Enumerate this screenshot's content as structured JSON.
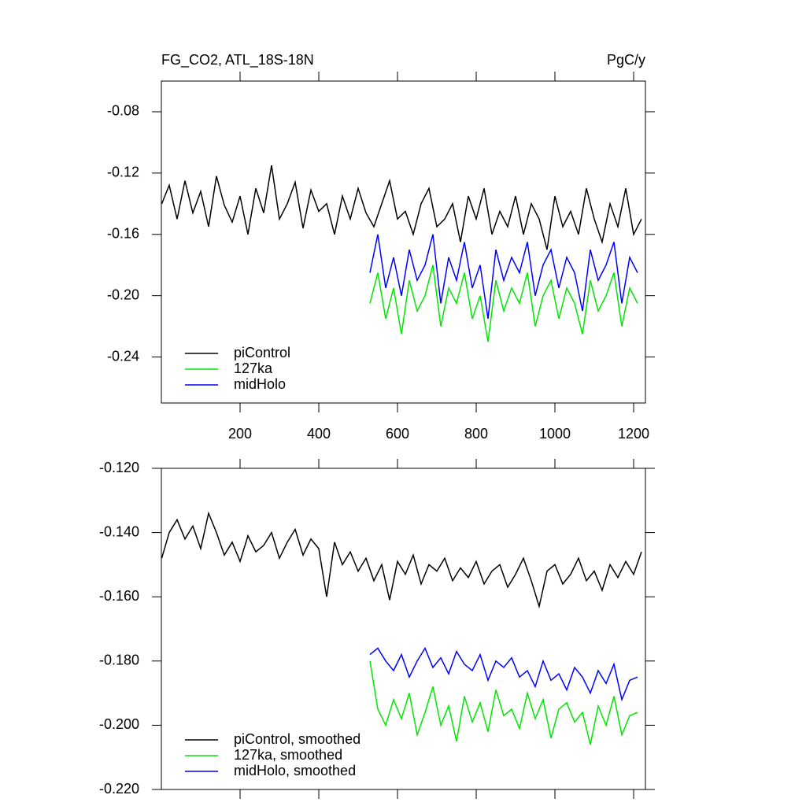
{
  "chart_data": [
    {
      "type": "line",
      "title": "FG_CO2, ATL_18S-18N",
      "units": "PgC/y",
      "xlim": [
        0,
        1230
      ],
      "xticks": [
        200,
        400,
        600,
        800,
        1000,
        1200
      ],
      "ylim": [
        -0.27,
        -0.06
      ],
      "yticks": [
        {
          "value": -0.08,
          "label": "-0.08"
        },
        {
          "value": -0.12,
          "label": "-0.12"
        },
        {
          "value": -0.16,
          "label": "-0.16"
        },
        {
          "value": -0.2,
          "label": "-0.20"
        },
        {
          "value": -0.24,
          "label": "-0.24"
        }
      ],
      "legend": "lower left",
      "series": [
        {
          "name": "piControl",
          "color": "#000000",
          "x": [
            1,
            20,
            40,
            60,
            80,
            100,
            120,
            140,
            160,
            180,
            200,
            220,
            240,
            260,
            280,
            300,
            320,
            340,
            360,
            380,
            400,
            420,
            440,
            460,
            480,
            500,
            520,
            540,
            560,
            580,
            600,
            620,
            640,
            660,
            680,
            700,
            720,
            740,
            760,
            780,
            800,
            820,
            840,
            860,
            880,
            900,
            920,
            940,
            960,
            980,
            1000,
            1020,
            1040,
            1060,
            1080,
            1100,
            1120,
            1140,
            1160,
            1180,
            1200,
            1220
          ],
          "values": [
            -0.14,
            -0.128,
            -0.15,
            -0.125,
            -0.146,
            -0.132,
            -0.155,
            -0.122,
            -0.141,
            -0.152,
            -0.135,
            -0.16,
            -0.13,
            -0.146,
            -0.115,
            -0.15,
            -0.14,
            -0.126,
            -0.156,
            -0.131,
            -0.145,
            -0.14,
            -0.16,
            -0.135,
            -0.15,
            -0.13,
            -0.146,
            -0.155,
            -0.14,
            -0.125,
            -0.15,
            -0.145,
            -0.16,
            -0.14,
            -0.13,
            -0.155,
            -0.15,
            -0.14,
            -0.165,
            -0.135,
            -0.15,
            -0.13,
            -0.16,
            -0.145,
            -0.155,
            -0.135,
            -0.16,
            -0.14,
            -0.15,
            -0.17,
            -0.135,
            -0.155,
            -0.145,
            -0.16,
            -0.13,
            -0.15,
            -0.165,
            -0.14,
            -0.155,
            -0.13,
            -0.16,
            -0.15
          ]
        },
        {
          "name": "127ka",
          "color": "#00e600",
          "x": [
            530,
            550,
            570,
            590,
            610,
            630,
            650,
            670,
            690,
            710,
            730,
            750,
            770,
            790,
            810,
            830,
            850,
            870,
            890,
            910,
            930,
            950,
            970,
            990,
            1010,
            1030,
            1050,
            1070,
            1090,
            1110,
            1130,
            1150,
            1170,
            1190,
            1210
          ],
          "values": [
            -0.205,
            -0.185,
            -0.215,
            -0.195,
            -0.225,
            -0.19,
            -0.21,
            -0.2,
            -0.18,
            -0.22,
            -0.195,
            -0.205,
            -0.185,
            -0.215,
            -0.2,
            -0.23,
            -0.19,
            -0.21,
            -0.195,
            -0.205,
            -0.185,
            -0.22,
            -0.2,
            -0.19,
            -0.215,
            -0.195,
            -0.205,
            -0.225,
            -0.19,
            -0.21,
            -0.2,
            -0.185,
            -0.22,
            -0.195,
            -0.205
          ]
        },
        {
          "name": "midHolo",
          "color": "#0000ff",
          "x": [
            530,
            550,
            570,
            590,
            610,
            630,
            650,
            670,
            690,
            710,
            730,
            750,
            770,
            790,
            810,
            830,
            850,
            870,
            890,
            910,
            930,
            950,
            970,
            990,
            1010,
            1030,
            1050,
            1070,
            1090,
            1110,
            1130,
            1150,
            1170,
            1190,
            1210
          ],
          "values": [
            -0.185,
            -0.16,
            -0.195,
            -0.175,
            -0.2,
            -0.17,
            -0.19,
            -0.18,
            -0.16,
            -0.205,
            -0.175,
            -0.19,
            -0.165,
            -0.195,
            -0.18,
            -0.215,
            -0.17,
            -0.19,
            -0.175,
            -0.185,
            -0.165,
            -0.2,
            -0.18,
            -0.17,
            -0.195,
            -0.175,
            -0.185,
            -0.21,
            -0.17,
            -0.19,
            -0.18,
            -0.165,
            -0.205,
            -0.175,
            -0.185
          ]
        }
      ]
    },
    {
      "type": "line",
      "xlim": [
        0,
        1230
      ],
      "xticks": [
        200,
        400,
        600,
        800,
        1000,
        1200
      ],
      "ylim": [
        -0.22,
        -0.12
      ],
      "yticks": [
        {
          "value": -0.12,
          "label": "-0.120"
        },
        {
          "value": -0.14,
          "label": "-0.140"
        },
        {
          "value": -0.16,
          "label": "-0.160"
        },
        {
          "value": -0.18,
          "label": "-0.180"
        },
        {
          "value": -0.2,
          "label": "-0.200"
        },
        {
          "value": -0.22,
          "label": "-0.220"
        }
      ],
      "legend": "lower left",
      "series": [
        {
          "name": "piControl, smoothed",
          "color": "#000000",
          "x": [
            1,
            20,
            40,
            60,
            80,
            100,
            120,
            140,
            160,
            180,
            200,
            220,
            240,
            260,
            280,
            300,
            320,
            340,
            360,
            380,
            400,
            420,
            440,
            460,
            480,
            500,
            520,
            540,
            560,
            580,
            600,
            620,
            640,
            660,
            680,
            700,
            720,
            740,
            760,
            780,
            800,
            820,
            840,
            860,
            880,
            900,
            920,
            940,
            960,
            980,
            1000,
            1020,
            1040,
            1060,
            1080,
            1100,
            1120,
            1140,
            1160,
            1180,
            1200,
            1220
          ],
          "values": [
            -0.148,
            -0.14,
            -0.136,
            -0.142,
            -0.138,
            -0.145,
            -0.134,
            -0.14,
            -0.147,
            -0.143,
            -0.149,
            -0.141,
            -0.146,
            -0.144,
            -0.14,
            -0.148,
            -0.143,
            -0.139,
            -0.147,
            -0.142,
            -0.145,
            -0.16,
            -0.143,
            -0.15,
            -0.146,
            -0.152,
            -0.148,
            -0.155,
            -0.15,
            -0.161,
            -0.149,
            -0.153,
            -0.147,
            -0.156,
            -0.15,
            -0.152,
            -0.148,
            -0.155,
            -0.151,
            -0.154,
            -0.149,
            -0.156,
            -0.152,
            -0.15,
            -0.157,
            -0.153,
            -0.148,
            -0.155,
            -0.163,
            -0.152,
            -0.15,
            -0.156,
            -0.153,
            -0.148,
            -0.155,
            -0.152,
            -0.158,
            -0.15,
            -0.154,
            -0.149,
            -0.153,
            -0.146
          ]
        },
        {
          "name": "127ka, smoothed",
          "color": "#00e600",
          "x": [
            530,
            550,
            570,
            590,
            610,
            630,
            650,
            670,
            690,
            710,
            730,
            750,
            770,
            790,
            810,
            830,
            850,
            870,
            890,
            910,
            930,
            950,
            970,
            990,
            1010,
            1030,
            1050,
            1070,
            1090,
            1110,
            1130,
            1150,
            1170,
            1190,
            1210
          ],
          "values": [
            -0.18,
            -0.195,
            -0.2,
            -0.192,
            -0.198,
            -0.19,
            -0.203,
            -0.196,
            -0.188,
            -0.2,
            -0.194,
            -0.205,
            -0.191,
            -0.199,
            -0.193,
            -0.202,
            -0.189,
            -0.197,
            -0.195,
            -0.201,
            -0.19,
            -0.198,
            -0.192,
            -0.204,
            -0.195,
            -0.193,
            -0.199,
            -0.196,
            -0.206,
            -0.194,
            -0.2,
            -0.191,
            -0.203,
            -0.197,
            -0.196
          ]
        },
        {
          "name": "midHolo, smoothed",
          "color": "#0000ff",
          "x": [
            530,
            550,
            570,
            590,
            610,
            630,
            650,
            670,
            690,
            710,
            730,
            750,
            770,
            790,
            810,
            830,
            850,
            870,
            890,
            910,
            930,
            950,
            970,
            990,
            1010,
            1030,
            1050,
            1070,
            1090,
            1110,
            1130,
            1150,
            1170,
            1190,
            1210
          ],
          "values": [
            -0.178,
            -0.176,
            -0.18,
            -0.183,
            -0.178,
            -0.185,
            -0.18,
            -0.176,
            -0.182,
            -0.179,
            -0.184,
            -0.177,
            -0.181,
            -0.183,
            -0.178,
            -0.186,
            -0.18,
            -0.182,
            -0.179,
            -0.185,
            -0.183,
            -0.188,
            -0.18,
            -0.186,
            -0.184,
            -0.189,
            -0.182,
            -0.185,
            -0.19,
            -0.183,
            -0.187,
            -0.181,
            -0.192,
            -0.186,
            -0.185
          ]
        }
      ]
    }
  ]
}
